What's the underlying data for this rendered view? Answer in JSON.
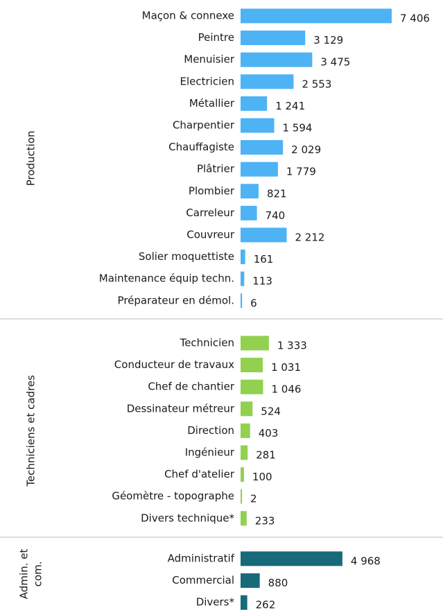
{
  "chart_data": {
    "type": "bar",
    "orientation": "horizontal",
    "groups": [
      {
        "label_lines": [
          "Production"
        ],
        "color": "#4db3f5",
        "categories": [
          "Maçon & connexe",
          "Peintre",
          "Menuisier",
          "Electricien",
          "Métallier",
          "Charpentier",
          "Chauffagiste",
          "Plâtrier",
          "Plombier",
          "Carreleur",
          "Couvreur",
          "Solier moquettiste",
          "Maintenance équip techn.",
          "Préparateur en démol."
        ],
        "values": [
          7406,
          3129,
          3475,
          2553,
          1241,
          1594,
          2029,
          1779,
          821,
          740,
          2212,
          161,
          113,
          6
        ],
        "value_labels": [
          "7 406",
          "3 129",
          "3 475",
          "2 553",
          "1 241",
          "1 594",
          "2 029",
          "1 779",
          "821",
          "740",
          "2 212",
          "161",
          "113",
          "6"
        ]
      },
      {
        "label_lines": [
          "Techniciens et cadres"
        ],
        "color": "#92d050",
        "categories": [
          "Technicien",
          "Conducteur de travaux",
          "Chef de chantier",
          "Dessinateur métreur",
          "Direction",
          "Ingénieur",
          "Chef d'atelier",
          "Géomètre - topographe",
          "Divers technique*"
        ],
        "values": [
          1333,
          1031,
          1046,
          524,
          403,
          281,
          100,
          2,
          233
        ],
        "value_labels": [
          "1 333",
          "1 031",
          "1 046",
          "524",
          "403",
          "281",
          "100",
          "2",
          "233"
        ]
      },
      {
        "label_lines": [
          "Admin. et",
          "com."
        ],
        "color": "#176a7a",
        "categories": [
          "Administratif",
          "Commercial",
          "Divers*"
        ],
        "values": [
          4968,
          880,
          262
        ],
        "value_labels": [
          "4 968",
          "880",
          "262"
        ]
      }
    ]
  }
}
